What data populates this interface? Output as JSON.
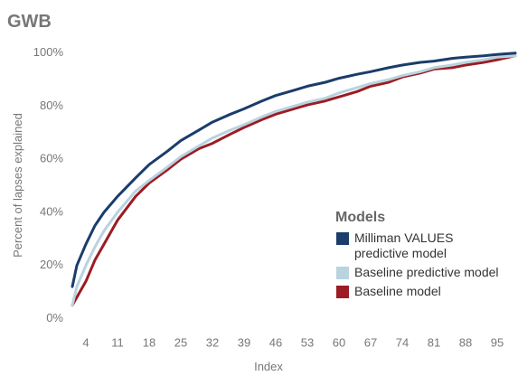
{
  "chart_data": {
    "type": "line",
    "title": "GWB",
    "x_label": "Index",
    "y_label": "Percent of lapses explained",
    "legend_title": "Models",
    "x": [
      1,
      2,
      4,
      6,
      8,
      11,
      15,
      18,
      22,
      25,
      29,
      32,
      36,
      39,
      43,
      46,
      50,
      53,
      57,
      60,
      64,
      67,
      71,
      74,
      78,
      81,
      85,
      88,
      92,
      95,
      99
    ],
    "series": [
      {
        "name": "Milliman VALUES predictive model",
        "color": "#1a3d6b",
        "values": [
          12,
          20,
          28,
          35,
          40,
          46,
          53,
          58,
          63,
          67,
          71,
          74,
          77,
          79,
          82,
          84,
          86,
          87.5,
          89,
          90.5,
          92,
          93,
          94.5,
          95.5,
          96.5,
          97,
          98,
          98.5,
          99,
          99.5,
          100
        ]
      },
      {
        "name": "Baseline predictive model",
        "color": "#b9d3df",
        "values": [
          5,
          12,
          20,
          27,
          33,
          40,
          48,
          52,
          57,
          61,
          65,
          68,
          71,
          73,
          76,
          78,
          80,
          81.5,
          83,
          85,
          87,
          88.5,
          90,
          91.5,
          93,
          94.5,
          95.5,
          96.5,
          97.5,
          98.5,
          99
        ]
      },
      {
        "name": "Baseline model",
        "color": "#9b1c23",
        "values": [
          5,
          8,
          14,
          22,
          28,
          37,
          46,
          51,
          56,
          60,
          64,
          66,
          69.5,
          72,
          75,
          77,
          79,
          80.5,
          82,
          83.5,
          85.5,
          87.5,
          89,
          91,
          92.5,
          94,
          94.5,
          95.5,
          96.5,
          97.5,
          99
        ]
      }
    ],
    "xlim": [
      1,
      99
    ],
    "xticks": [
      4,
      11,
      18,
      25,
      32,
      39,
      46,
      53,
      60,
      67,
      74,
      81,
      88,
      95
    ],
    "ylim": [
      -6,
      104
    ],
    "yticks": [
      {
        "value": 0,
        "label": "0%"
      },
      {
        "value": 20,
        "label": "20%"
      },
      {
        "value": 40,
        "label": "40%"
      },
      {
        "value": 60,
        "label": "60%"
      },
      {
        "value": 80,
        "label": "80%"
      },
      {
        "value": 100,
        "label": "100%"
      }
    ],
    "grid": false
  }
}
